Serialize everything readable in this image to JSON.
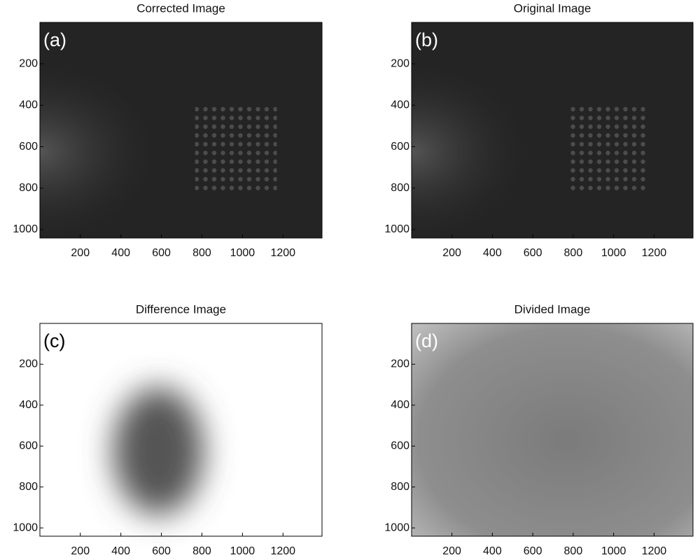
{
  "chart_data": [
    {
      "type": "image",
      "title": "Corrected Image",
      "panel_label": "(a)",
      "xlim": [
        0.5,
        1392.5
      ],
      "ylim": [
        0.5,
        1040.5
      ],
      "y_direction": "reverse",
      "xticks": [
        200,
        400,
        600,
        800,
        1000,
        1200
      ],
      "yticks": [
        200,
        400,
        600,
        800,
        1000
      ]
    },
    {
      "type": "image",
      "title": "Original Image",
      "panel_label": "(b)",
      "xlim": [
        0.5,
        1392.5
      ],
      "ylim": [
        0.5,
        1040.5
      ],
      "y_direction": "reverse",
      "xticks": [
        200,
        400,
        600,
        800,
        1000,
        1200
      ],
      "yticks": [
        200,
        400,
        600,
        800,
        1000
      ]
    },
    {
      "type": "image",
      "title": "Difference Image",
      "panel_label": "(c)",
      "xlim": [
        0.5,
        1392.5
      ],
      "ylim": [
        0.5,
        1040.5
      ],
      "y_direction": "reverse",
      "xticks": [
        200,
        400,
        600,
        800,
        1000,
        1200
      ],
      "yticks": [
        200,
        400,
        600,
        800,
        1000
      ]
    },
    {
      "type": "image",
      "title": "Divided Image",
      "panel_label": "(d)",
      "xlim": [
        0.5,
        1392.5
      ],
      "ylim": [
        0.5,
        1040.5
      ],
      "y_direction": "reverse",
      "xticks": [
        200,
        400,
        600,
        800,
        1000,
        1200
      ],
      "yticks": [
        200,
        400,
        600,
        800,
        1000
      ]
    }
  ]
}
